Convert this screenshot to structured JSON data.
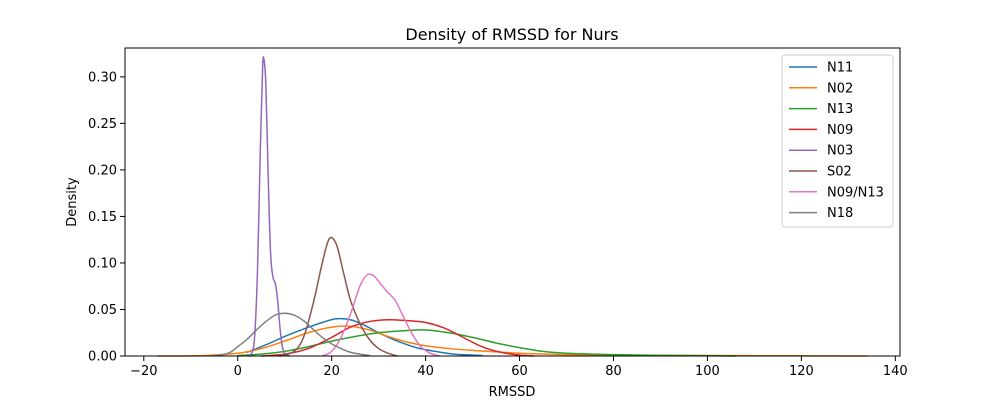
{
  "chart_data": {
    "type": "line",
    "title": "Density of RMSSD for Nurs",
    "xlabel": "RMSSD",
    "ylabel": "Density",
    "xlim": [
      -24,
      141
    ],
    "ylim": [
      0,
      0.331
    ],
    "xticks": [
      -20,
      0,
      20,
      40,
      60,
      80,
      100,
      120,
      140
    ],
    "yticks": [
      0.0,
      0.05,
      0.1,
      0.15,
      0.2,
      0.25,
      0.3
    ],
    "xtick_labels": [
      "−20",
      "0",
      "20",
      "40",
      "60",
      "80",
      "100",
      "120",
      "140"
    ],
    "ytick_labels": [
      "0.00",
      "0.05",
      "0.10",
      "0.15",
      "0.20",
      "0.25",
      "0.30"
    ],
    "grid": false,
    "legend_position": "top-right",
    "series": [
      {
        "name": "N11",
        "color": "#1f77b4",
        "points": [
          [
            2,
            0.004
          ],
          [
            6,
            0.012
          ],
          [
            10,
            0.021
          ],
          [
            14,
            0.029
          ],
          [
            18,
            0.036
          ],
          [
            21,
            0.04
          ],
          [
            24,
            0.039
          ],
          [
            27,
            0.033
          ],
          [
            30,
            0.025
          ],
          [
            34,
            0.016
          ],
          [
            38,
            0.009
          ],
          [
            42,
            0.005
          ],
          [
            46,
            0.002
          ],
          [
            50,
            0.001
          ],
          [
            52,
            0.0005
          ]
        ]
      },
      {
        "name": "N02",
        "color": "#ff7f0e",
        "points": [
          [
            -17,
            0.0
          ],
          [
            -8,
            0.0003
          ],
          [
            0,
            0.003
          ],
          [
            5,
            0.008
          ],
          [
            10,
            0.016
          ],
          [
            15,
            0.025
          ],
          [
            20,
            0.031
          ],
          [
            24,
            0.032
          ],
          [
            28,
            0.028
          ],
          [
            32,
            0.021
          ],
          [
            36,
            0.015
          ],
          [
            40,
            0.011
          ],
          [
            45,
            0.008
          ],
          [
            50,
            0.006
          ],
          [
            60,
            0.003
          ],
          [
            70,
            0.0015
          ],
          [
            80,
            0.001
          ],
          [
            100,
            0.0005
          ],
          [
            120,
            0.0002
          ],
          [
            134,
            0.0
          ]
        ]
      },
      {
        "name": "N13",
        "color": "#2ca02c",
        "points": [
          [
            0,
            0.0005
          ],
          [
            5,
            0.002
          ],
          [
            10,
            0.005
          ],
          [
            15,
            0.01
          ],
          [
            20,
            0.016
          ],
          [
            25,
            0.021
          ],
          [
            30,
            0.025
          ],
          [
            35,
            0.027
          ],
          [
            40,
            0.028
          ],
          [
            45,
            0.025
          ],
          [
            50,
            0.02
          ],
          [
            55,
            0.014
          ],
          [
            60,
            0.009
          ],
          [
            65,
            0.005
          ],
          [
            70,
            0.003
          ],
          [
            80,
            0.0015
          ],
          [
            90,
            0.0007
          ],
          [
            100,
            0.0003
          ],
          [
            106,
            0.0
          ]
        ]
      },
      {
        "name": "N09",
        "color": "#d62728",
        "points": [
          [
            5,
            0.0
          ],
          [
            10,
            0.002
          ],
          [
            15,
            0.008
          ],
          [
            20,
            0.02
          ],
          [
            24,
            0.031
          ],
          [
            28,
            0.037
          ],
          [
            32,
            0.039
          ],
          [
            36,
            0.038
          ],
          [
            40,
            0.036
          ],
          [
            44,
            0.03
          ],
          [
            48,
            0.02
          ],
          [
            52,
            0.01
          ],
          [
            56,
            0.004
          ],
          [
            60,
            0.001
          ],
          [
            63,
            0.0
          ]
        ]
      },
      {
        "name": "N03",
        "color": "#9467bd",
        "points": [
          [
            2.5,
            0.0
          ],
          [
            3.5,
            0.015
          ],
          [
            4.2,
            0.09
          ],
          [
            4.8,
            0.22
          ],
          [
            5.3,
            0.31
          ],
          [
            5.6,
            0.318
          ],
          [
            6.0,
            0.29
          ],
          [
            6.5,
            0.19
          ],
          [
            7.0,
            0.11
          ],
          [
            7.5,
            0.085
          ],
          [
            8.0,
            0.078
          ],
          [
            8.5,
            0.06
          ],
          [
            9.0,
            0.03
          ],
          [
            9.5,
            0.01
          ],
          [
            10,
            0.003
          ],
          [
            11,
            0.0
          ]
        ]
      },
      {
        "name": "S02",
        "color": "#8c564b",
        "points": [
          [
            9,
            0.0
          ],
          [
            12,
            0.005
          ],
          [
            14,
            0.02
          ],
          [
            16,
            0.055
          ],
          [
            18,
            0.1
          ],
          [
            19.5,
            0.126
          ],
          [
            21,
            0.12
          ],
          [
            22.5,
            0.09
          ],
          [
            24,
            0.06
          ],
          [
            26,
            0.035
          ],
          [
            28,
            0.018
          ],
          [
            30,
            0.008
          ],
          [
            32,
            0.003
          ],
          [
            34,
            0.0
          ]
        ]
      },
      {
        "name": "N09/N13",
        "color": "#e377c2",
        "points": [
          [
            18,
            0.0
          ],
          [
            20,
            0.005
          ],
          [
            22,
            0.02
          ],
          [
            24,
            0.045
          ],
          [
            26,
            0.075
          ],
          [
            27.5,
            0.087
          ],
          [
            29,
            0.086
          ],
          [
            30.5,
            0.077
          ],
          [
            32,
            0.068
          ],
          [
            33.5,
            0.06
          ],
          [
            35,
            0.045
          ],
          [
            37,
            0.025
          ],
          [
            39,
            0.01
          ],
          [
            41,
            0.003
          ],
          [
            43,
            0.0
          ]
        ]
      },
      {
        "name": "N18",
        "color": "#7f7f7f",
        "points": [
          [
            -5,
            0.0005
          ],
          [
            -2,
            0.003
          ],
          [
            0,
            0.01
          ],
          [
            2,
            0.018
          ],
          [
            4,
            0.028
          ],
          [
            6,
            0.037
          ],
          [
            8,
            0.044
          ],
          [
            10,
            0.046
          ],
          [
            12,
            0.044
          ],
          [
            14,
            0.038
          ],
          [
            16,
            0.029
          ],
          [
            18,
            0.02
          ],
          [
            20,
            0.013
          ],
          [
            22,
            0.008
          ],
          [
            24,
            0.004
          ],
          [
            26,
            0.002
          ],
          [
            28,
            0.0005
          ]
        ]
      }
    ]
  }
}
